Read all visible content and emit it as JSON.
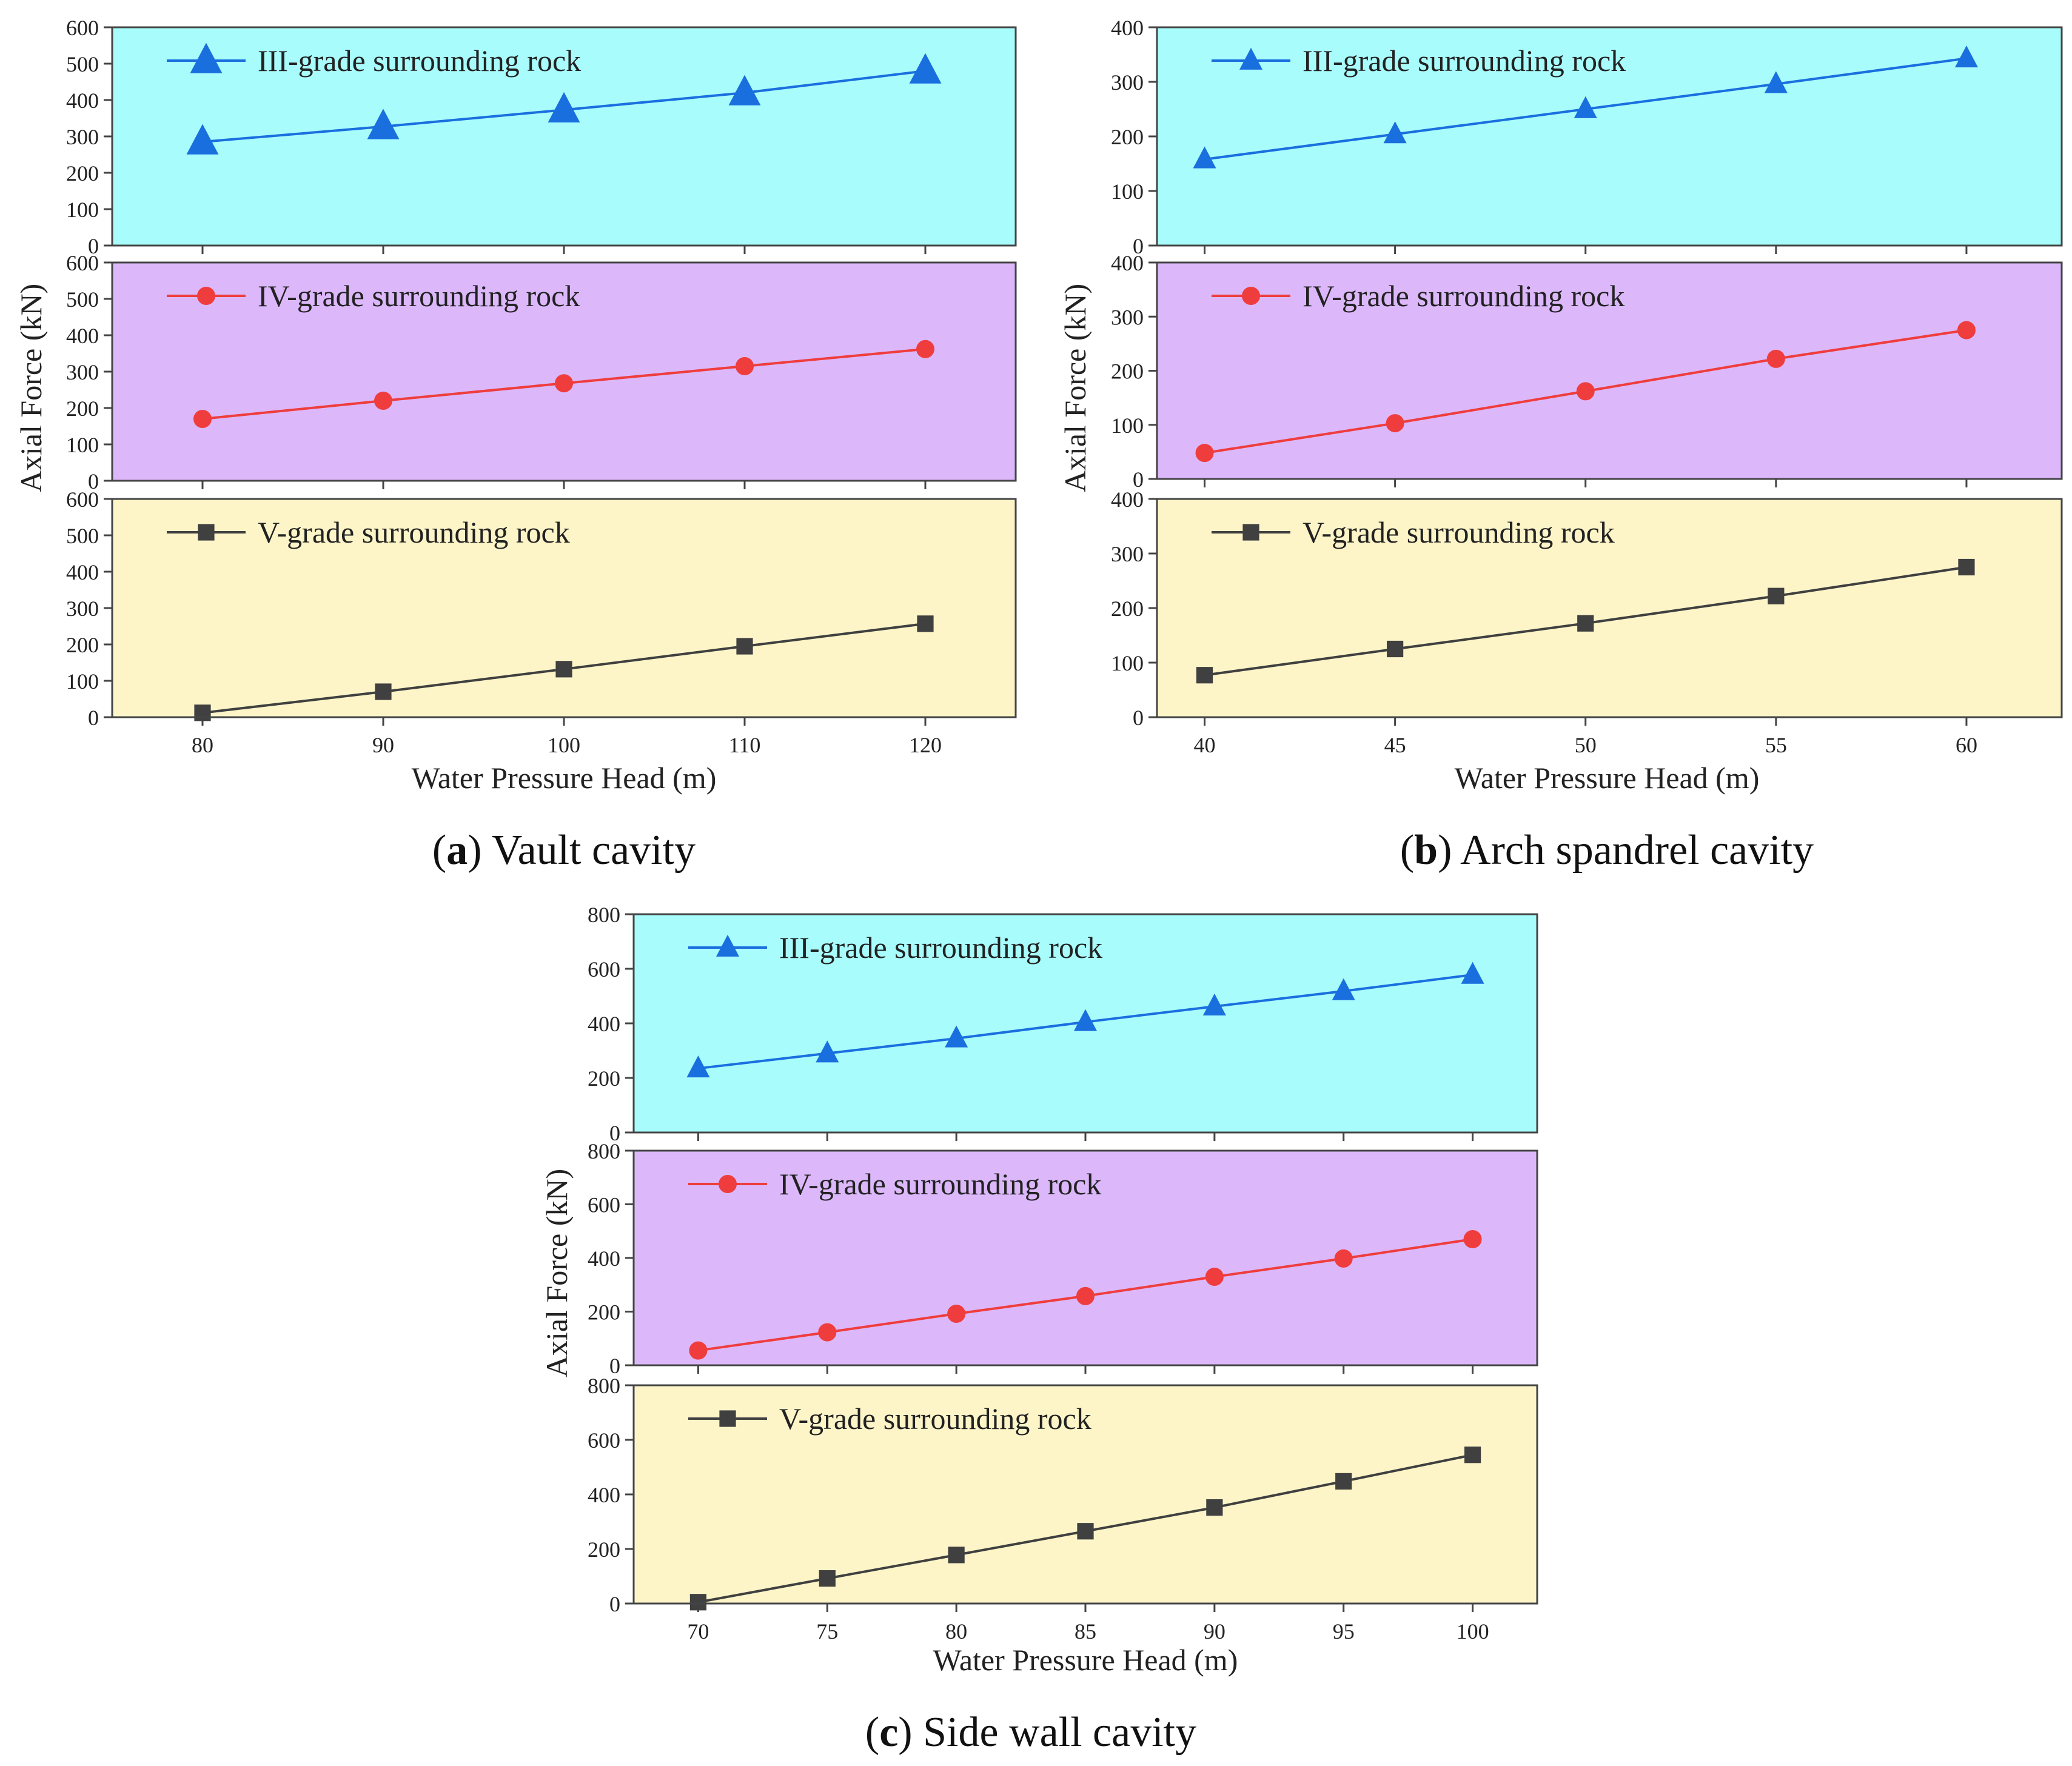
{
  "colors": {
    "III": "#1a6fdf",
    "IV": "#ef3d3d",
    "V": "#404040",
    "panel_cyan": "#a9fcfc",
    "panel_purple": "#dcb8fb",
    "panel_yellow": "#fdf5c8"
  },
  "icons": {
    "III": "triangle-marker-icon",
    "IV": "circle-marker-icon",
    "V": "square-marker-icon"
  },
  "chart_data": [
    {
      "id": "a",
      "type": "line",
      "caption_letter": "a",
      "caption_text": " Vault cavity",
      "xlabel": "Water Pressure Head (m)",
      "ylabel": "Axial Force (kN)",
      "x": [
        80,
        90,
        100,
        110,
        120
      ],
      "xlim": [
        75,
        125
      ],
      "x_ticks": [
        "80",
        "90",
        "100",
        "110",
        "120"
      ],
      "ylim": [
        0,
        600
      ],
      "y_ticks": [
        "0",
        "100",
        "200",
        "300",
        "400",
        "500",
        "600"
      ],
      "series": [
        {
          "name": "III-grade surrounding rock",
          "grade": "III",
          "values": [
            285,
            327,
            373,
            420,
            480
          ]
        },
        {
          "name": "IV-grade surrounding rock",
          "grade": "IV",
          "values": [
            170,
            220,
            268,
            315,
            362
          ]
        },
        {
          "name": "V-grade surrounding rock",
          "grade": "V",
          "values": [
            12,
            70,
            132,
            195,
            257
          ]
        }
      ]
    },
    {
      "id": "b",
      "type": "line",
      "caption_letter": "b",
      "caption_text": " Arch spandrel cavity",
      "xlabel": "Water Pressure Head (m)",
      "ylabel": "Axial Force (kN)",
      "x": [
        40,
        45,
        50,
        55,
        60
      ],
      "xlim": [
        38.75,
        62.5
      ],
      "x_ticks": [
        "40",
        "45",
        "50",
        "55",
        "60"
      ],
      "ylim": [
        0,
        400
      ],
      "y_ticks": [
        "0",
        "100",
        "200",
        "300",
        "400"
      ],
      "series": [
        {
          "name": "III-grade surrounding rock",
          "grade": "III",
          "values": [
            158,
            204,
            250,
            296,
            343
          ]
        },
        {
          "name": "IV-grade surrounding rock",
          "grade": "IV",
          "values": [
            48,
            103,
            162,
            222,
            275
          ]
        },
        {
          "name": "V-grade surrounding rock",
          "grade": "V",
          "values": [
            77,
            125,
            172,
            222,
            275
          ]
        }
      ]
    },
    {
      "id": "c",
      "type": "line",
      "caption_letter": "c",
      "caption_text": " Side wall cavity",
      "xlabel": "Water Pressure Head (m)",
      "ylabel": "Axial Force (kN)",
      "x": [
        70,
        75,
        80,
        85,
        90,
        95,
        100
      ],
      "xlim": [
        67.5,
        102.5
      ],
      "x_ticks": [
        "70",
        "75",
        "80",
        "85",
        "90",
        "95",
        "100"
      ],
      "ylim": [
        0,
        800
      ],
      "y_ticks": [
        "0",
        "200",
        "400",
        "600",
        "800"
      ],
      "series": [
        {
          "name": "III-grade surrounding rock",
          "grade": "III",
          "values": [
            235,
            290,
            345,
            405,
            462,
            518,
            578
          ]
        },
        {
          "name": "IV-grade surrounding rock",
          "grade": "IV",
          "values": [
            55,
            123,
            192,
            258,
            330,
            398,
            470
          ]
        },
        {
          "name": "V-grade surrounding rock",
          "grade": "V",
          "values": [
            5,
            92,
            178,
            265,
            352,
            448,
            545
          ]
        }
      ]
    }
  ]
}
